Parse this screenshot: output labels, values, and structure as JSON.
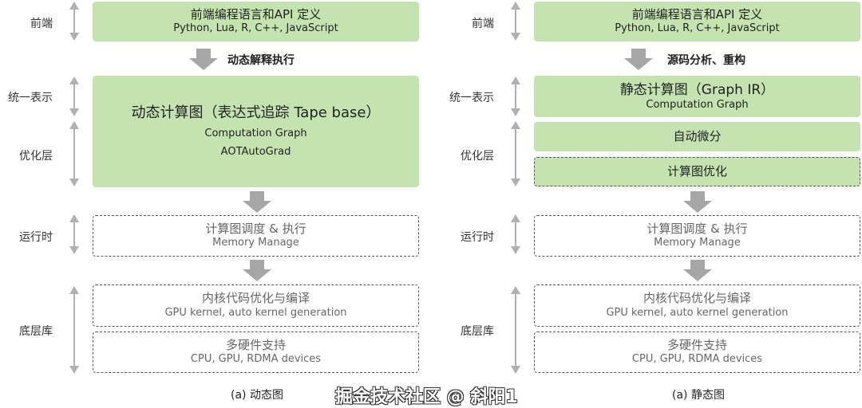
{
  "layers": {
    "frontend": "前端",
    "unified": "统一表示",
    "optimize": "优化层",
    "runtime": "运行时",
    "lowlevel": "底层库"
  },
  "dynamic": {
    "frontend_title": "前端编程语言和API 定义",
    "frontend_sub": "Python, Lua, R, C++, JavaScript",
    "flow_label": "动态解释执行",
    "graph_title": "动态计算图（表达式追踪 Tape base）",
    "graph_sub1": "Computation Graph",
    "graph_sub2": "AOTAutoGrad",
    "runtime_title": "计算图调度 & 执行",
    "runtime_sub": "Memory Manage",
    "kernel_title": "内核代码优化与编译",
    "kernel_sub": "GPU kernel, auto kernel generation",
    "hw_title": "多硬件支持",
    "hw_sub": "CPU, GPU, RDMA devices",
    "caption": "(a) 动态图"
  },
  "static": {
    "frontend_title": "前端编程语言和API 定义",
    "frontend_sub": "Python, Lua, R, C++, JavaScript",
    "flow_label": "源码分析、重构",
    "graph_title": "静态计算图（Graph IR）",
    "graph_sub": "Computation Graph",
    "autodiff": "自动微分",
    "graph_opt": "计算图优化",
    "runtime_title": "计算图调度 & 执行",
    "runtime_sub": "Memory Manage",
    "kernel_title": "内核代码优化与编译",
    "kernel_sub": "GPU kernel, auto kernel generation",
    "hw_title": "多硬件支持",
    "hw_sub": "CPU, GPU, RDMA devices",
    "caption": "(a) 静态图"
  },
  "watermark": "掘金技术社区 @ 斜阳1",
  "colors": {
    "box_green": "#c5e3b0",
    "arrow_gray": "#a6a6a6"
  }
}
